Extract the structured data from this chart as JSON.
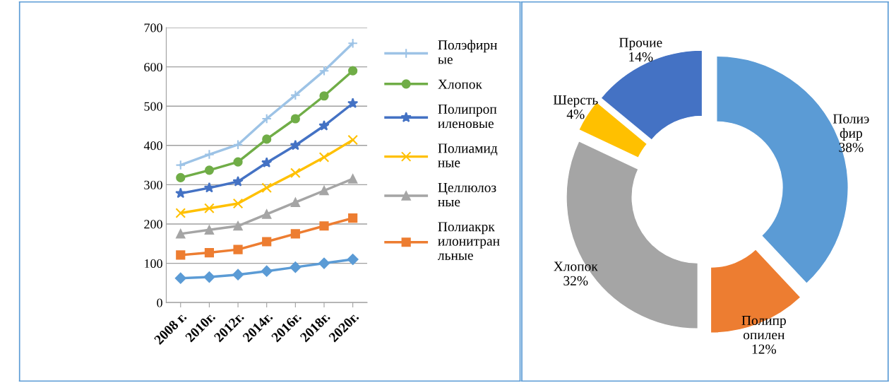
{
  "chart_data": [
    {
      "type": "line",
      "categories": [
        "2008 г.",
        "2010г.",
        "2012г.",
        "2014г.",
        "2016г.",
        "2018г.",
        "2020г."
      ],
      "ylim": [
        0,
        700
      ],
      "yticks": [
        0,
        100,
        200,
        300,
        400,
        500,
        600,
        700
      ],
      "grid": "y",
      "legend": "right",
      "series": [
        {
          "name": "Полэфирн\nые",
          "color": "#9dc3e6",
          "marker": "plus",
          "values": [
            350,
            377,
            402,
            468,
            528,
            590,
            660
          ]
        },
        {
          "name": "Хлопок",
          "color": "#70ad47",
          "marker": "circle",
          "values": [
            318,
            337,
            358,
            416,
            468,
            526,
            590
          ]
        },
        {
          "name": "Полипроп\nиленовые",
          "color": "#4472c4",
          "marker": "star",
          "values": [
            278,
            292,
            308,
            356,
            400,
            450,
            507
          ]
        },
        {
          "name": "Полиамид\nные",
          "color": "#ffc000",
          "marker": "cross",
          "values": [
            228,
            240,
            252,
            292,
            330,
            370,
            414
          ]
        },
        {
          "name": "Целлюлоз\nные",
          "color": "#a5a5a5",
          "marker": "triangle",
          "values": [
            175,
            185,
            195,
            225,
            255,
            285,
            315
          ]
        },
        {
          "name": "Полиакрк\nилонитран\nльные",
          "color": "#ed7d31",
          "marker": "square",
          "values": [
            121,
            127,
            135,
            155,
            175,
            195,
            215
          ]
        },
        {
          "color": "#5b9bd5",
          "marker": "diamond",
          "values": [
            62,
            65,
            71,
            80,
            90,
            100,
            110
          ]
        }
      ]
    },
    {
      "type": "donut",
      "categories": [
        "Полиэ\nфир",
        "Полипр\nопилен",
        "Хлопок",
        "Шерсть",
        "Прочие"
      ],
      "values": [
        38,
        12,
        32,
        4,
        14
      ],
      "value_labels": [
        "38%",
        "12%",
        "32%",
        "4%",
        "14%"
      ],
      "colors": [
        "#5b9bd5",
        "#ed7d31",
        "#a5a5a5",
        "#ffc000",
        "#4472c4"
      ]
    }
  ]
}
